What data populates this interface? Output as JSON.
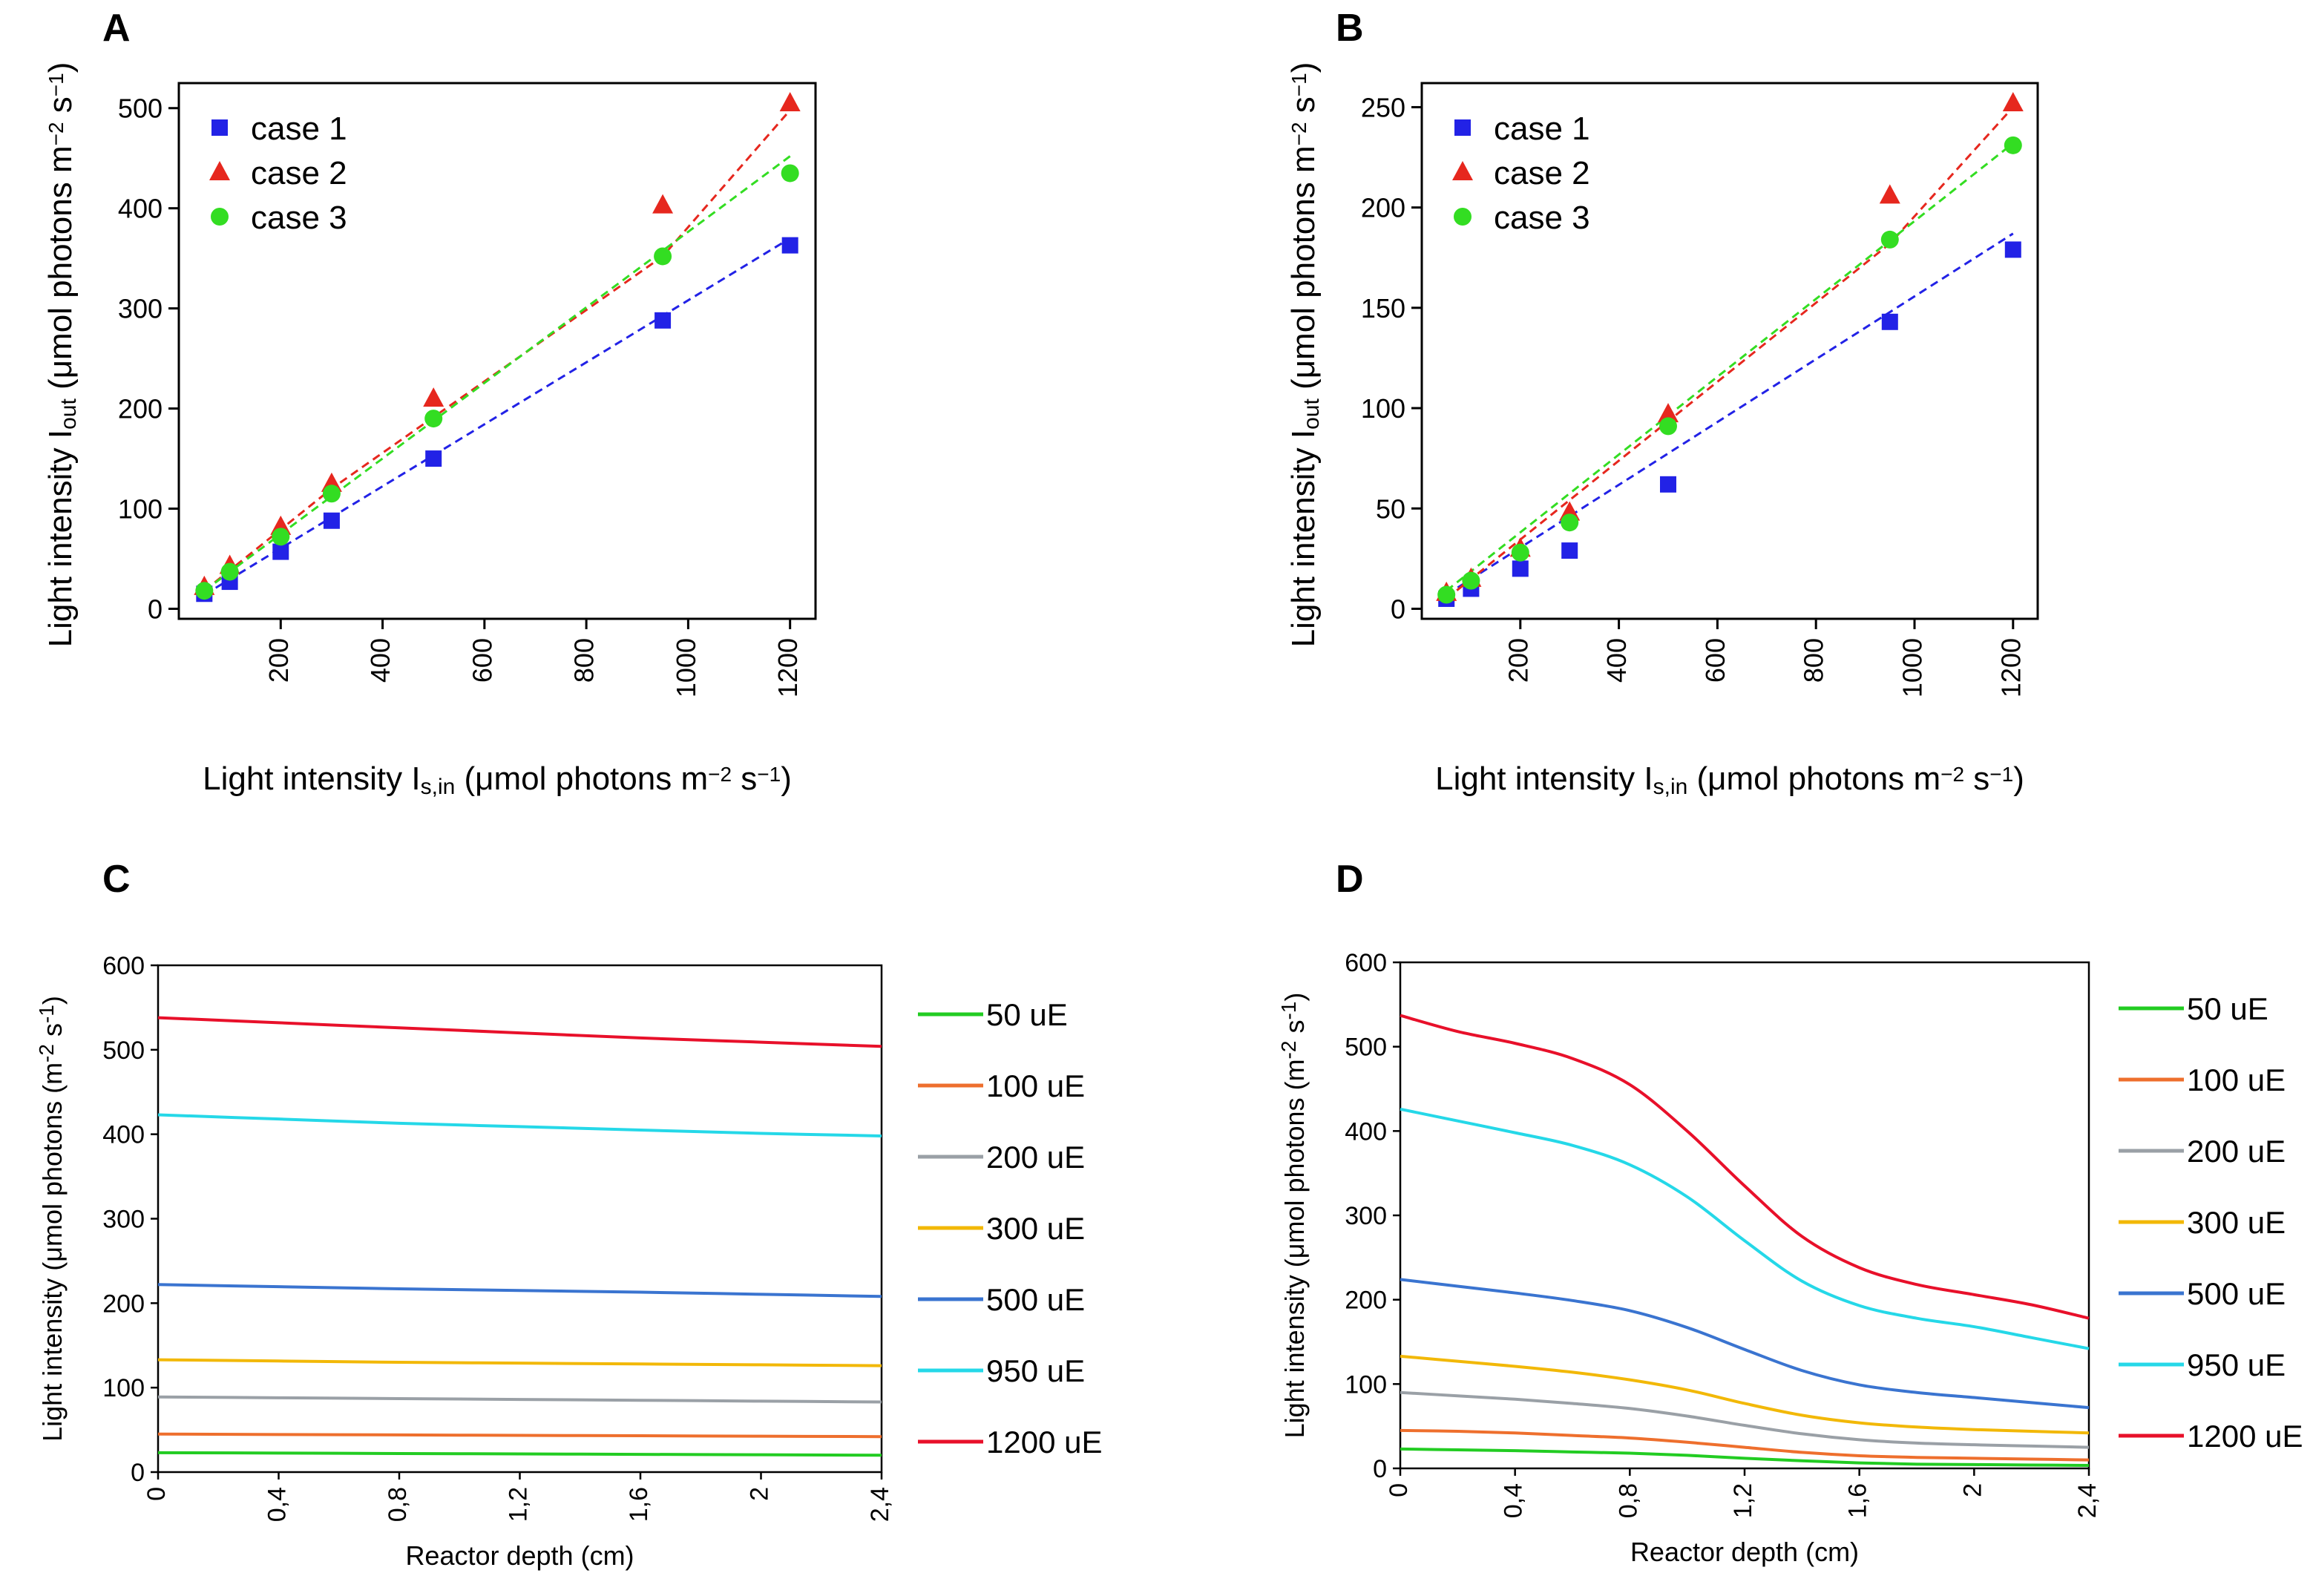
{
  "chart_data": [
    {
      "panel": "A",
      "type": "scatter",
      "xlabel_parts": [
        "Light intensity I",
        "s,in",
        " (μmol photons m",
        "−2",
        " s",
        "−1",
        ")"
      ],
      "ylabel_parts": [
        "Light intensity I",
        "out",
        " (μmol photons m",
        "−2",
        " s",
        "−1",
        ")"
      ],
      "xlim": [
        0,
        1250
      ],
      "ylim": [
        -10,
        525
      ],
      "xticks": [
        200,
        400,
        600,
        800,
        1000,
        1200
      ],
      "xtick_labels": [
        "200",
        "400",
        "600",
        "800",
        "1000",
        "1200"
      ],
      "yticks": [
        0,
        100,
        200,
        300,
        400,
        500
      ],
      "ytick_labels": [
        "0",
        "100",
        "200",
        "300",
        "400",
        "500"
      ],
      "legend_position": "top-left",
      "series": [
        {
          "name": "case 1",
          "marker": "square",
          "color": "#2222e6",
          "x": [
            50,
            100,
            200,
            300,
            500,
            950,
            1200
          ],
          "y": [
            15,
            27,
            57,
            88,
            150,
            288,
            363
          ]
        },
        {
          "name": "case 2",
          "marker": "triangle",
          "color": "#e6271e",
          "x": [
            50,
            100,
            200,
            300,
            500,
            950,
            1200
          ],
          "y": [
            22,
            43,
            82,
            125,
            210,
            403,
            505
          ]
        },
        {
          "name": "case 3",
          "marker": "circle",
          "color": "#33dd22",
          "x": [
            50,
            100,
            200,
            300,
            500,
            950,
            1200
          ],
          "y": [
            18,
            37,
            72,
            115,
            190,
            352,
            435
          ]
        }
      ],
      "fit_lines": [
        {
          "name": "case 1",
          "color": "#2222e6",
          "x": [
            50,
            1200
          ],
          "y": [
            14,
            370
          ]
        },
        {
          "name": "case 2",
          "color": "#e6271e",
          "x": [
            50,
            300,
            950,
            1200
          ],
          "y": [
            18,
            120,
            352,
            498
          ]
        },
        {
          "name": "case 3",
          "color": "#33dd22",
          "x": [
            50,
            1200
          ],
          "y": [
            18,
            452
          ]
        }
      ]
    },
    {
      "panel": "B",
      "type": "scatter",
      "xlabel_parts": [
        "Light intensity I",
        "s,in",
        " (μmol photons m",
        "−2",
        " s",
        "−1",
        ")"
      ],
      "ylabel_parts": [
        "Light intensity I",
        "out",
        " (μmol photons m",
        "−2",
        " s",
        "−1",
        ")"
      ],
      "xlim": [
        0,
        1250
      ],
      "ylim": [
        -5,
        262
      ],
      "xticks": [
        200,
        400,
        600,
        800,
        1000,
        1200
      ],
      "xtick_labels": [
        "200",
        "400",
        "600",
        "800",
        "1000",
        "1200"
      ],
      "yticks": [
        0,
        50,
        100,
        150,
        200,
        250
      ],
      "ytick_labels": [
        "0",
        "50",
        "100",
        "150",
        "200",
        "250"
      ],
      "legend_position": "top-left",
      "series": [
        {
          "name": "case 1",
          "marker": "square",
          "color": "#2222e6",
          "x": [
            50,
            100,
            200,
            300,
            500,
            950,
            1200
          ],
          "y": [
            5,
            10,
            20,
            29,
            62,
            143,
            179
          ]
        },
        {
          "name": "case 2",
          "marker": "triangle",
          "color": "#e6271e",
          "x": [
            50,
            100,
            200,
            300,
            500,
            950,
            1200
          ],
          "y": [
            8,
            15,
            30,
            48,
            97,
            206,
            252
          ]
        },
        {
          "name": "case 3",
          "marker": "circle",
          "color": "#33dd22",
          "x": [
            50,
            100,
            200,
            300,
            500,
            950,
            1200
          ],
          "y": [
            7,
            14,
            28,
            43,
            91,
            184,
            231
          ]
        }
      ],
      "fit_lines": [
        {
          "name": "case 1",
          "color": "#2222e6",
          "x": [
            50,
            1200
          ],
          "y": [
            7,
            187
          ]
        },
        {
          "name": "case 2",
          "color": "#e6271e",
          "x": [
            50,
            950,
            1200
          ],
          "y": [
            5,
            182,
            250
          ]
        },
        {
          "name": "case 3",
          "color": "#33dd22",
          "x": [
            50,
            1200
          ],
          "y": [
            9,
            232
          ]
        }
      ]
    },
    {
      "panel": "C",
      "type": "line",
      "xlabel": "Reactor depth (cm)",
      "ylabel_parts": [
        "Light intensity (μmol photons (m",
        "-2",
        " s",
        "-1",
        ")"
      ],
      "xlim": [
        0,
        2.4
      ],
      "ylim": [
        0,
        600
      ],
      "xticks": [
        0,
        0.4,
        0.8,
        1.2,
        1.6,
        2,
        2.4
      ],
      "xtick_labels": [
        "0",
        "0,4",
        "0,8",
        "1,2",
        "1,6",
        "2",
        "2,4"
      ],
      "yticks": [
        0,
        100,
        200,
        300,
        400,
        500,
        600
      ],
      "ytick_labels": [
        "0",
        "100",
        "200",
        "300",
        "400",
        "500",
        "600"
      ],
      "legend_position": "right",
      "x": [
        0,
        0.4,
        0.8,
        1.2,
        1.6,
        2.0,
        2.4
      ],
      "series": [
        {
          "name": "50 uE",
          "color": "#22cc22",
          "values": [
            23,
            22.5,
            22,
            21.5,
            21,
            20.5,
            20
          ]
        },
        {
          "name": "100 uE",
          "color": "#ee6f2d",
          "values": [
            45,
            44.5,
            44,
            43.5,
            43,
            42.5,
            42
          ]
        },
        {
          "name": "200 uE",
          "color": "#9aa0a6",
          "values": [
            89,
            88,
            87,
            86,
            85,
            84,
            83
          ]
        },
        {
          "name": "300 uE",
          "color": "#f2b807",
          "values": [
            133,
            131.5,
            130,
            129,
            128,
            127,
            126
          ]
        },
        {
          "name": "500 uE",
          "color": "#3a74d0",
          "values": [
            222,
            219.5,
            217,
            215,
            213,
            210.5,
            208
          ]
        },
        {
          "name": "950 uE",
          "color": "#25d8e8",
          "values": [
            423,
            418,
            413,
            409,
            405,
            401,
            398
          ]
        },
        {
          "name": "1200 uE",
          "color": "#e8102a",
          "values": [
            538,
            532,
            526,
            520,
            514,
            509,
            504
          ]
        }
      ]
    },
    {
      "panel": "D",
      "type": "line",
      "xlabel": "Reactor depth (cm)",
      "ylabel_parts": [
        "Light intensity (μmol photons (m",
        "-2",
        " s",
        "-1",
        ")"
      ],
      "xlim": [
        0,
        2.4
      ],
      "ylim": [
        0,
        600
      ],
      "xticks": [
        0,
        0.4,
        0.8,
        1.2,
        1.6,
        2,
        2.4
      ],
      "xtick_labels": [
        "0",
        "0,4",
        "0,8",
        "1,2",
        "1,6",
        "2",
        "2,4"
      ],
      "yticks": [
        0,
        100,
        200,
        300,
        400,
        500,
        600
      ],
      "ytick_labels": [
        "0",
        "100",
        "200",
        "300",
        "400",
        "500",
        "600"
      ],
      "legend_position": "right",
      "x": [
        0,
        0.2,
        0.4,
        0.6,
        0.8,
        1.0,
        1.2,
        1.4,
        1.6,
        1.8,
        2.0,
        2.2,
        2.4
      ],
      "series": [
        {
          "name": "50 uE",
          "color": "#22cc22",
          "values": [
            23,
            22,
            21,
            19.5,
            18,
            15.5,
            12,
            9,
            6.5,
            5,
            4.5,
            4,
            3.5
          ]
        },
        {
          "name": "100 uE",
          "color": "#ee6f2d",
          "values": [
            45,
            44,
            42,
            39,
            36,
            31,
            25,
            19,
            15,
            13,
            12,
            11,
            10
          ]
        },
        {
          "name": "200 uE",
          "color": "#9aa0a6",
          "values": [
            90,
            86,
            82,
            77,
            71,
            62,
            51,
            41,
            34,
            30,
            28,
            26.5,
            25
          ]
        },
        {
          "name": "300 uE",
          "color": "#f2b807",
          "values": [
            133,
            127,
            121,
            114,
            105,
            93,
            77,
            63,
            54,
            49,
            46,
            44,
            42
          ]
        },
        {
          "name": "500 uE",
          "color": "#3a74d0",
          "values": [
            224,
            216,
            208,
            199,
            187,
            167,
            141,
            116,
            99,
            90,
            84,
            78,
            72
          ]
        },
        {
          "name": "950 uE",
          "color": "#25d8e8",
          "values": [
            426,
            412,
            398,
            383,
            360,
            322,
            270,
            222,
            193,
            178,
            168,
            155,
            142
          ]
        },
        {
          "name": "1200 uE",
          "color": "#e8102a",
          "values": [
            537,
            518,
            504,
            486,
            455,
            400,
            335,
            275,
            238,
            218,
            206,
            194,
            178
          ]
        }
      ]
    }
  ]
}
